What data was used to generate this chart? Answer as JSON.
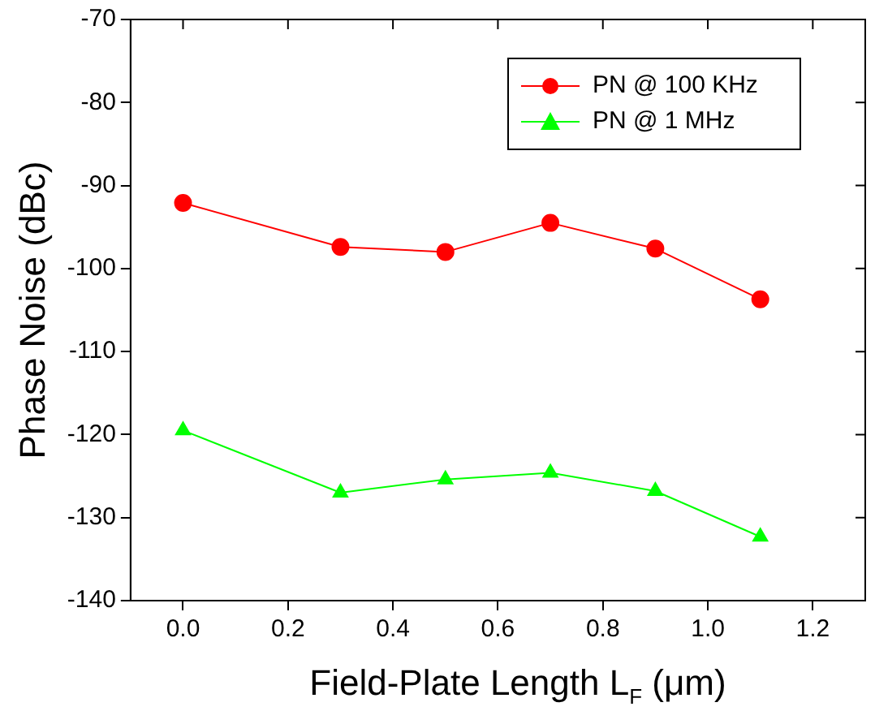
{
  "chart_data": {
    "type": "line",
    "xlabel": "Field-Plate Length L$_{F}$ (μm)",
    "ylabel": "Phase Noise (dBc)",
    "x": [
      0.0,
      0.3,
      0.5,
      0.7,
      0.9,
      1.1
    ],
    "series": [
      {
        "name": "PN @ 100 KHz",
        "color": "#ff0000",
        "marker": "circle",
        "values": [
          -92.1,
          -97.4,
          -98.0,
          -94.5,
          -97.6,
          -103.7
        ]
      },
      {
        "name": "PN @ 1 MHz",
        "color": "#00ff00",
        "marker": "triangle",
        "values": [
          -119.5,
          -127.0,
          -125.4,
          -124.6,
          -126.8,
          -132.3
        ]
      }
    ],
    "xlim": [
      -0.1,
      1.3
    ],
    "xticks": [
      {
        "value": 0,
        "label": "0.0"
      },
      0.2,
      0.4,
      0.6,
      0.8,
      {
        "value": 1,
        "label": "1.0"
      },
      1.2
    ],
    "ylim": [
      -140,
      -70
    ],
    "yticks": [
      -140,
      -130,
      -120,
      -110,
      -100,
      -90,
      -80,
      -70
    ],
    "grid": false,
    "legend": "top right",
    "line_style": "solid"
  }
}
